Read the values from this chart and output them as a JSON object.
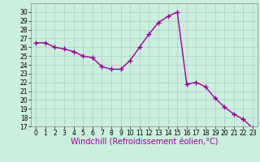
{
  "x": [
    0,
    1,
    2,
    3,
    4,
    5,
    6,
    7,
    8,
    9,
    10,
    11,
    12,
    13,
    14,
    15,
    16,
    17,
    18,
    19,
    20,
    21,
    22,
    23
  ],
  "y": [
    26.5,
    26.5,
    26.0,
    25.8,
    25.5,
    25.0,
    24.8,
    23.8,
    23.5,
    23.5,
    24.5,
    26.0,
    27.5,
    28.8,
    29.5,
    30.0,
    21.8,
    22.0,
    21.5,
    20.2,
    19.2,
    18.4,
    17.8,
    16.8
  ],
  "line_color": "#990099",
  "marker": "+",
  "marker_size": 4,
  "marker_lw": 1.0,
  "bg_color": "#cceedd",
  "grid_color": "#aacccc",
  "xlabel": "Windchill (Refroidissement éolien,°C)",
  "xlabel_color": "#990099",
  "ylim": [
    17,
    31
  ],
  "xlim": [
    -0.5,
    23.5
  ],
  "yticks": [
    17,
    18,
    19,
    20,
    21,
    22,
    23,
    24,
    25,
    26,
    27,
    28,
    29,
    30
  ],
  "xticks": [
    0,
    1,
    2,
    3,
    4,
    5,
    6,
    7,
    8,
    9,
    10,
    11,
    12,
    13,
    14,
    15,
    16,
    17,
    18,
    19,
    20,
    21,
    22,
    23
  ],
  "tick_fontsize": 5.5,
  "xlabel_fontsize": 7.0,
  "linewidth": 1.0
}
